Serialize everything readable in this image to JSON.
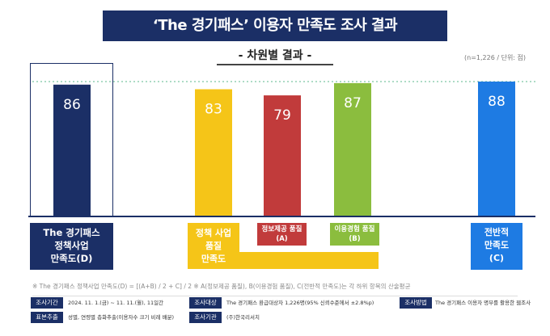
{
  "title": "‘The 경기패스’ 이용자 만족도 조사 결과",
  "subtitle": "- 차원별 결과 -",
  "unit_note": "(n=1,226 / 단위: 점)",
  "categories": {
    "overall": [
      "The 경기패스",
      "정책사업",
      "만족도(D)"
    ],
    "policy": [
      "정책 사업",
      "품질",
      "만족도"
    ],
    "info": [
      "정보제공 품질",
      "(A)"
    ],
    "experience": [
      "이용경험 품질",
      "(B)"
    ],
    "total": [
      "전반적",
      "만족도",
      "(C)"
    ]
  },
  "footnote": "※ The 경기패스 정책사업 만족도(D) = [(A+B) / 2 + C] / 2    ※ A(정보제공 품질), B(이용경험 품질), C(전반적 만족도)는 각 하위 항목의 산술평균",
  "survey_info": {
    "period_label": "조사기간",
    "period_value": "2024. 11. 1.(금) ~ 11. 11.(월), 11일간",
    "target_label": "조사대상",
    "target_value": "The 경기패스 환급대상자 1,226명(95% 신뢰수준에서 ±2.8%p)",
    "method_label": "조사방법",
    "method_value": "The 경기패스 이용자 명부를 활용한 웹조사",
    "sampling_label": "표본추출",
    "sampling_value": "성별, 연령별 층화추출(이용자수 크기 비례 배분)",
    "agency_label": "조사기관",
    "agency_value": "(주)한국리서치"
  },
  "colors": {
    "navy": "#1b2f66",
    "yellow": "#f5c518",
    "red": "#c13b3b",
    "green": "#8bbd3e",
    "blue": "#1e7be3",
    "reference_line": "#7cc6a4"
  },
  "chart_data": {
    "type": "bar",
    "categories": [
      "The 경기패스 정책사업 만족도(D)",
      "정책 사업 품질 만족도",
      "정보제공 품질(A)",
      "이용경험 품질(B)",
      "전반적 만족도(C)"
    ],
    "values": [
      86,
      83,
      79,
      87,
      88
    ],
    "bar_colors": [
      "#1b2f66",
      "#f5c518",
      "#c13b3b",
      "#8bbd3e",
      "#1e7be3"
    ],
    "value_labels": [
      "86",
      "83",
      "79",
      "87",
      "88"
    ],
    "reference_line": 88,
    "title": "‘The 경기패스’ 이용자 만족도 조사 결과",
    "subtitle": "- 차원별 결과 -",
    "xlabel": "",
    "ylabel": "",
    "grid": false
  }
}
